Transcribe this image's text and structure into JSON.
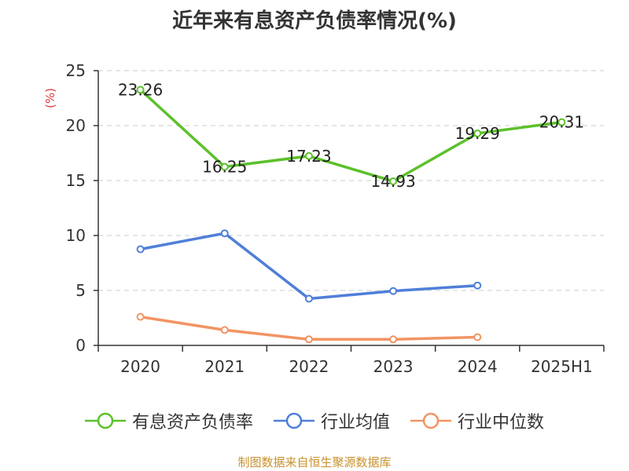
{
  "title": "近年来有息资产负债率情况(%)",
  "source": "制图数据来自恒生聚源数据库",
  "chart_data": {
    "type": "line",
    "categories": [
      "2020",
      "2021",
      "2022",
      "2023",
      "2024",
      "2025H1"
    ],
    "ylabel": "(%)",
    "ylim": [
      0,
      25
    ],
    "yticks": [
      0,
      5,
      10,
      15,
      20,
      25
    ],
    "grid": true,
    "legend_position": "bottom",
    "series": [
      {
        "name": "有息资产负债率",
        "color": "#5cc12a",
        "values": [
          23.26,
          16.25,
          17.23,
          14.93,
          19.29,
          20.31
        ],
        "labels": [
          "23.26",
          "16.25",
          "17.23",
          "14.93",
          "19.29",
          "20.31"
        ]
      },
      {
        "name": "行业均值",
        "color": "#4f7fd8",
        "values": [
          8.75,
          10.2,
          4.25,
          4.95,
          5.45,
          null
        ]
      },
      {
        "name": "行业中位数",
        "color": "#f29463",
        "values": [
          2.6,
          1.4,
          0.55,
          0.55,
          0.75,
          null
        ]
      }
    ],
    "ylabel_color": "#e03a3a"
  }
}
